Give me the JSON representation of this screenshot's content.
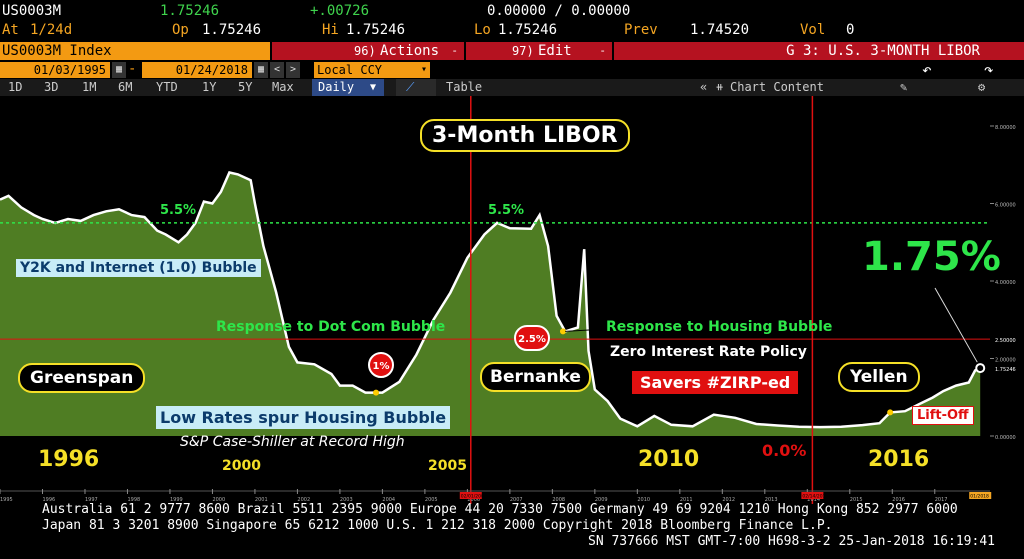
{
  "header": {
    "ticker": "US0003M",
    "last": "1.75246",
    "change": "+.00726",
    "bidask": "0.00000 / 0.00000",
    "at_label": "At",
    "at_value": "1/24d",
    "op_label": "Op",
    "op_value": "1.75246",
    "hi_label": "Hi",
    "hi_value": "1.75246",
    "lo_label": "Lo",
    "lo_value": "1.75246",
    "prev_label": "Prev",
    "prev_value": "1.74520",
    "vol_label": "Vol",
    "vol_value": "0"
  },
  "toolbar": {
    "index_label": "US0003M Index",
    "actions_num": "96)",
    "actions_label": "Actions",
    "edit_num": "97)",
    "edit_label": "Edit",
    "graph_title": "G 3: U.S. 3-MONTH LIBOR",
    "start_date": "01/03/1995",
    "end_date": "01/24/2018",
    "currency": "Local CCY",
    "ranges": [
      "1D",
      "3D",
      "1M",
      "6M",
      "YTD",
      "1Y",
      "5Y",
      "Max"
    ],
    "frequency": "Daily",
    "table_label": "Table",
    "chart_content_label": "Chart Content"
  },
  "annotations": {
    "title": "3-Month LIBOR",
    "peak1": "5.5%",
    "peak2": "5.5%",
    "current": "1.75%",
    "y2k": "Y2K and Internet (1.0) Bubble",
    "dotcom": "Response to Dot Com Bubble",
    "housing": "Response to Housing Bubble",
    "zirp": "Zero Interest Rate Policy",
    "greenspan": "Greenspan",
    "bernanke": "Bernanke",
    "yellen": "Yellen",
    "savers": "Savers #ZIRP-ed",
    "lowrates": "Low Rates spur Housing Bubble",
    "caseshiller": "S&P Case-Shiller at Record High",
    "liftoff": "Lift-Off",
    "one_pct": "1%",
    "two5_pct": "2.5%",
    "zero_pct": "0.0%",
    "years": [
      "1996",
      "2000",
      "2005",
      "2010",
      "2016"
    ]
  },
  "colors": {
    "area": "#4f7d23",
    "line": "#ffffff",
    "dashed": "#2ee64a",
    "vline": "#e01010",
    "hline": "#e01010"
  },
  "chart_data": {
    "type": "area",
    "series": [
      {
        "values": [
          [
            1995.0,
            6.1
          ],
          [
            1995.2,
            6.2
          ],
          [
            1995.5,
            5.9
          ],
          [
            1995.8,
            5.7
          ],
          [
            1996.0,
            5.6
          ],
          [
            1996.3,
            5.5
          ],
          [
            1996.6,
            5.6
          ],
          [
            1996.9,
            5.55
          ],
          [
            1997.2,
            5.7
          ],
          [
            1997.5,
            5.8
          ],
          [
            1997.8,
            5.85
          ],
          [
            1998.1,
            5.7
          ],
          [
            1998.4,
            5.65
          ],
          [
            1998.7,
            5.3
          ],
          [
            1998.9,
            5.2
          ],
          [
            1999.2,
            5.0
          ],
          [
            1999.4,
            5.2
          ],
          [
            1999.6,
            5.5
          ],
          [
            1999.8,
            6.05
          ],
          [
            2000.0,
            6.0
          ],
          [
            2000.2,
            6.3
          ],
          [
            2000.4,
            6.8
          ],
          [
            2000.6,
            6.75
          ],
          [
            2000.9,
            6.6
          ],
          [
            2001.0,
            6.0
          ],
          [
            2001.2,
            4.9
          ],
          [
            2001.5,
            3.7
          ],
          [
            2001.8,
            2.3
          ],
          [
            2002.0,
            1.9
          ],
          [
            2002.4,
            1.85
          ],
          [
            2002.8,
            1.6
          ],
          [
            2003.0,
            1.3
          ],
          [
            2003.3,
            1.3
          ],
          [
            2003.6,
            1.12
          ],
          [
            2004.0,
            1.12
          ],
          [
            2004.4,
            1.4
          ],
          [
            2004.8,
            2.1
          ],
          [
            2005.2,
            3.0
          ],
          [
            2005.6,
            3.7
          ],
          [
            2006.0,
            4.6
          ],
          [
            2006.4,
            5.2
          ],
          [
            2006.7,
            5.5
          ],
          [
            2007.0,
            5.36
          ],
          [
            2007.5,
            5.35
          ],
          [
            2007.7,
            5.7
          ],
          [
            2007.9,
            4.9
          ],
          [
            2008.1,
            3.1
          ],
          [
            2008.3,
            2.7
          ],
          [
            2008.6,
            2.8
          ],
          [
            2008.75,
            4.82
          ],
          [
            2008.85,
            2.2
          ],
          [
            2009.0,
            1.2
          ],
          [
            2009.3,
            0.9
          ],
          [
            2009.6,
            0.45
          ],
          [
            2010.0,
            0.25
          ],
          [
            2010.4,
            0.52
          ],
          [
            2010.8,
            0.29
          ],
          [
            2011.3,
            0.25
          ],
          [
            2011.8,
            0.55
          ],
          [
            2012.3,
            0.47
          ],
          [
            2012.8,
            0.31
          ],
          [
            2013.3,
            0.27
          ],
          [
            2013.8,
            0.24
          ],
          [
            2014.3,
            0.23
          ],
          [
            2014.8,
            0.24
          ],
          [
            2015.3,
            0.28
          ],
          [
            2015.7,
            0.33
          ],
          [
            2015.95,
            0.61
          ],
          [
            2016.3,
            0.64
          ],
          [
            2016.7,
            0.86
          ],
          [
            2016.95,
            0.99
          ],
          [
            2017.2,
            1.16
          ],
          [
            2017.5,
            1.3
          ],
          [
            2017.8,
            1.38
          ],
          [
            2017.95,
            1.69
          ],
          [
            2018.07,
            1.75246
          ]
        ]
      }
    ],
    "ylim": [
      0,
      8
    ],
    "xlim": [
      1995,
      2018.3
    ],
    "y_ticks": [
      "8.00000",
      "6.00000",
      "4.00000",
      "2.00000",
      "0.00000"
    ],
    "y_extra": [
      "2.50000",
      "1.75246"
    ],
    "x_ticks": [
      "1995",
      "1996",
      "1997",
      "1998",
      "1999",
      "2000",
      "2001",
      "2002",
      "2003",
      "2004",
      "2005",
      "2006",
      "2007",
      "2008",
      "2009",
      "2010",
      "2011",
      "2012",
      "2013",
      "2014",
      "2015",
      "2016",
      "2017"
    ],
    "x_markers": [
      "02/01/2006",
      "02/14/2014"
    ],
    "x_marker_highlight": "01/2018"
  },
  "footer": {
    "line1": "Australia 61 2 9777 8600 Brazil 5511 2395 9000 Europe 44 20 7330 7500 Germany 49 69 9204 1210 Hong Kong 852 2977 6000",
    "line2": "Japan 81 3 3201 8900         Singapore 65 6212 1000         U.S. 1 212 318 2000         Copyright 2018 Bloomberg Finance L.P.",
    "line3": "SN 737666 MST  GMT-7:00 H698-3-2 25-Jan-2018 16:19:41"
  }
}
